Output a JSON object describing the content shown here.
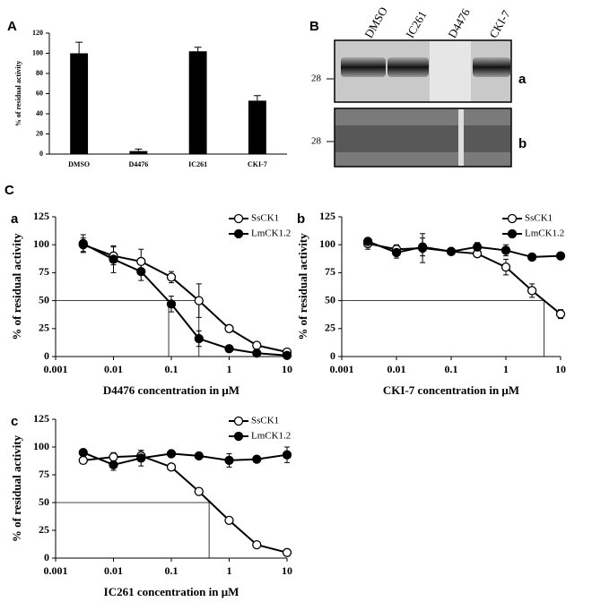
{
  "panel_labels": [
    "A",
    "B",
    "C"
  ],
  "gel": {
    "lanes": [
      "DMSO",
      "IC261",
      "D4476",
      "CKI-7"
    ],
    "markers": [
      "28",
      "28"
    ],
    "blots": [
      "a",
      "b"
    ]
  },
  "chart_data": [
    {
      "type": "bar",
      "ylabel": "% of residual activity",
      "categories": [
        "DMSO",
        "D4476",
        "IC261",
        "CKI-7"
      ],
      "values": [
        100,
        3,
        102,
        53
      ],
      "errors": [
        11,
        2,
        4,
        5
      ],
      "color": "#000000",
      "ylim": [
        0,
        120
      ],
      "yticks": [
        0,
        20,
        40,
        60,
        80,
        100,
        120
      ]
    },
    {
      "type": "line",
      "panel": "a",
      "xlabel": "D4476 concentration in μM",
      "ylabel": "% of residual activity",
      "xlog": true,
      "x": [
        0.003,
        0.01,
        0.03,
        0.1,
        0.3,
        1,
        3,
        10
      ],
      "xlim": [
        0.001,
        10
      ],
      "xticks": [
        0.001,
        0.01,
        0.1,
        1,
        10
      ],
      "ylim": [
        0,
        125
      ],
      "yticks": [
        0,
        25,
        50,
        75,
        100,
        125
      ],
      "legend": "top-right",
      "reference_lines": [
        {
          "x": 0.09,
          "y": 50
        },
        {
          "x": 0.3,
          "y": 50
        }
      ],
      "series": [
        {
          "name": "SsCK1",
          "color": "#000000",
          "marker_fill": "#ffffff",
          "values": [
            100,
            90,
            85,
            71,
            50,
            25,
            10,
            4
          ],
          "errors": [
            6,
            8,
            11,
            5,
            15,
            3,
            1,
            1
          ]
        },
        {
          "name": "LmCK1.2",
          "color": "#000000",
          "marker_fill": "#000000",
          "values": [
            101,
            87,
            76,
            47,
            16,
            7,
            3,
            1
          ],
          "errors": [
            8,
            12,
            8,
            7,
            7,
            1,
            1,
            1
          ]
        }
      ]
    },
    {
      "type": "line",
      "panel": "b",
      "xlabel": "CKI-7 concentration in μM",
      "ylabel": "% of residual activity",
      "xlog": true,
      "x": [
        0.003,
        0.01,
        0.03,
        0.1,
        0.3,
        1,
        3,
        10
      ],
      "xlim": [
        0.001,
        10
      ],
      "xticks": [
        0.001,
        0.01,
        0.1,
        1,
        10
      ],
      "ylim": [
        0,
        125
      ],
      "yticks": [
        0,
        25,
        50,
        75,
        100,
        125
      ],
      "legend": "top-right",
      "reference_lines": [
        {
          "x": 5,
          "y": 50
        }
      ],
      "series": [
        {
          "name": "SsCK1",
          "color": "#000000",
          "marker_fill": "#ffffff",
          "values": [
            101,
            96,
            97,
            94,
            92,
            80,
            59,
            38
          ],
          "errors": [
            5,
            4,
            13,
            2,
            3,
            7,
            6,
            4
          ]
        },
        {
          "name": "LmCK1.2",
          "color": "#000000",
          "marker_fill": "#000000",
          "values": [
            103,
            93,
            98,
            94,
            98,
            95,
            89,
            90
          ],
          "errors": [
            3,
            5,
            8,
            2,
            4,
            5,
            2,
            2
          ]
        }
      ]
    },
    {
      "type": "line",
      "panel": "c",
      "xlabel": "IC261 concentration in μM",
      "ylabel": "% of residual activity",
      "xlog": true,
      "x": [
        0.003,
        0.01,
        0.03,
        0.1,
        0.3,
        1,
        3,
        10
      ],
      "xlim": [
        0.001,
        10
      ],
      "xticks": [
        0.001,
        0.01,
        0.1,
        1,
        10
      ],
      "ylim": [
        0,
        125
      ],
      "yticks": [
        0,
        25,
        50,
        75,
        100,
        125
      ],
      "legend": "top-right",
      "reference_lines": [
        {
          "x": 0.45,
          "y": 50
        }
      ],
      "series": [
        {
          "name": "SsCK1",
          "color": "#000000",
          "marker_fill": "#ffffff",
          "values": [
            88,
            91,
            92,
            82,
            60,
            34,
            12,
            5
          ],
          "errors": [
            3,
            4,
            5,
            3,
            1,
            1,
            1,
            1
          ]
        },
        {
          "name": "LmCK1.2",
          "color": "#000000",
          "marker_fill": "#000000",
          "values": [
            95,
            84,
            90,
            94,
            92,
            88,
            89,
            93
          ],
          "errors": [
            2,
            5,
            7,
            3,
            2,
            6,
            2,
            7
          ]
        }
      ]
    }
  ]
}
